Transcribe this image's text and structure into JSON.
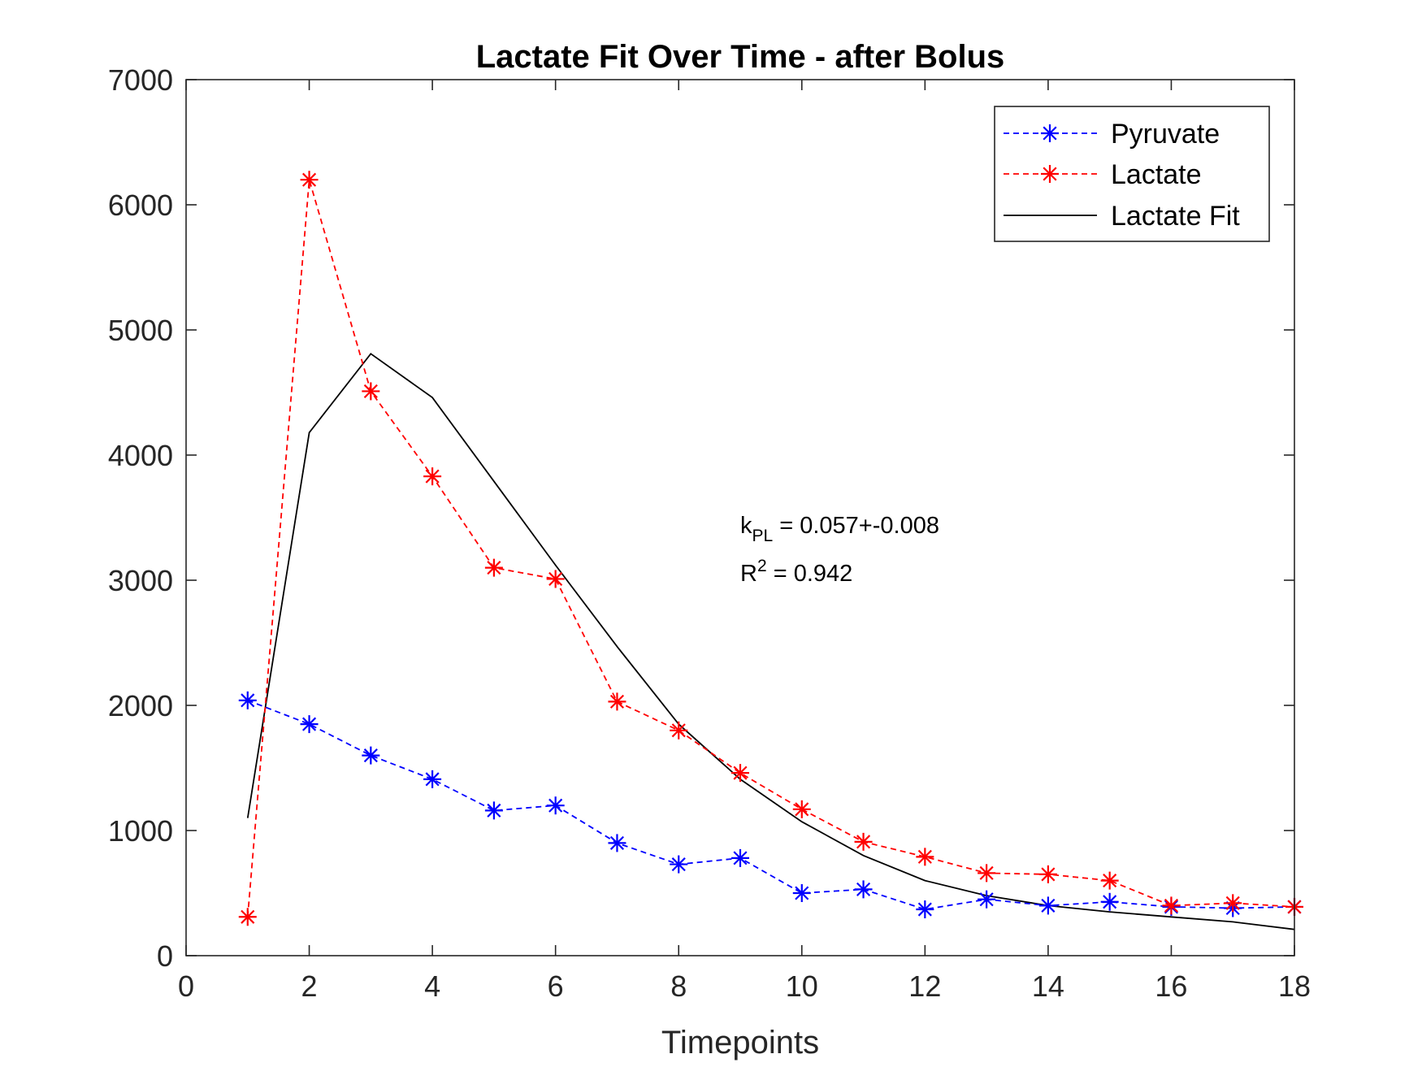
{
  "chart_data": {
    "type": "line",
    "title": "Lactate Fit Over Time - after Bolus",
    "xlabel": "Timepoints",
    "ylabel": "",
    "xlim": [
      0,
      18
    ],
    "ylim": [
      0,
      7000
    ],
    "xticks": [
      0,
      2,
      4,
      6,
      8,
      10,
      12,
      14,
      16,
      18
    ],
    "yticks": [
      0,
      1000,
      2000,
      3000,
      4000,
      5000,
      6000,
      7000
    ],
    "grid": false,
    "legend_position": "top-right",
    "x": [
      1,
      2,
      3,
      4,
      5,
      6,
      7,
      8,
      9,
      10,
      11,
      12,
      13,
      14,
      15,
      16,
      17,
      18
    ],
    "series": [
      {
        "name": "Pyruvate",
        "color": "#0000ff",
        "line": "dashed",
        "marker": "asterisk",
        "values": [
          2040,
          1850,
          1600,
          1410,
          1160,
          1200,
          900,
          730,
          780,
          500,
          530,
          370,
          450,
          400,
          430,
          390,
          380,
          390
        ]
      },
      {
        "name": "Lactate",
        "color": "#ff0000",
        "line": "dashed",
        "marker": "asterisk",
        "values": [
          310,
          6200,
          4510,
          3830,
          3100,
          3010,
          2030,
          1800,
          1460,
          1170,
          910,
          790,
          660,
          650,
          600,
          400,
          420,
          390
        ]
      },
      {
        "name": "Lactate Fit",
        "color": "#000000",
        "line": "solid",
        "marker": "none",
        "values": [
          1100,
          4180,
          4810,
          4460,
          3790,
          3120,
          2470,
          1850,
          1410,
          1070,
          800,
          600,
          480,
          400,
          350,
          310,
          270,
          210
        ]
      }
    ],
    "annotations": {
      "kpl": {
        "prefix": "k",
        "sub": "PL",
        "value": " = 0.057+-0.008"
      },
      "r2": {
        "prefix": "R",
        "sup": "2",
        "value": " = 0.942"
      }
    }
  }
}
